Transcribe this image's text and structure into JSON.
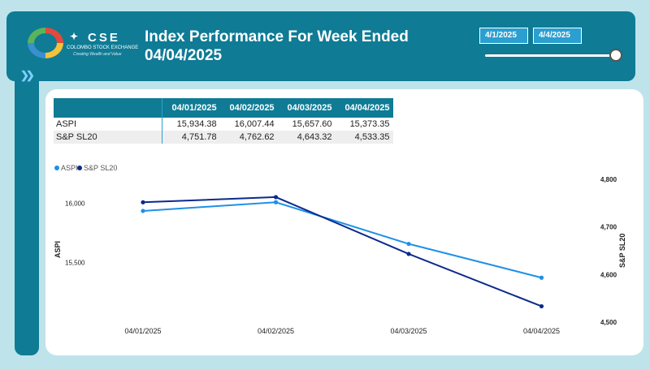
{
  "header": {
    "title_line1": "Index Performance For Week Ended",
    "title_line2": "04/04/2025",
    "logo": {
      "cse_text": "CSE",
      "name": "COLOMBO STOCK EXCHANGE",
      "tagline": "Creating Wealth and Value"
    },
    "date_from": "4/1/2025",
    "date_to": "4/4/2025",
    "range_slider_position": 1.0
  },
  "table": {
    "columns": [
      "",
      "04/01/2025",
      "04/02/2025",
      "04/03/2025",
      "04/04/2025"
    ],
    "rows": [
      {
        "label": "ASPI",
        "values": [
          "15,934.38",
          "16,007.44",
          "15,657.60",
          "15,373.35"
        ]
      },
      {
        "label": "S&P SL20",
        "values": [
          "4,751.78",
          "4,762.62",
          "4,643.32",
          "4,533.35"
        ]
      }
    ]
  },
  "colors": {
    "header_bg": "#0f7b95",
    "aspi": "#1e90e8",
    "sp_sl20": "#0b2a8c"
  },
  "chart_data": {
    "type": "line",
    "categories": [
      "04/01/2025",
      "04/02/2025",
      "04/03/2025",
      "04/04/2025"
    ],
    "series": [
      {
        "name": "ASPI",
        "axis": "left",
        "values": [
          15934.38,
          16007.44,
          15657.6,
          15373.35
        ]
      },
      {
        "name": "S&P SL20",
        "axis": "right",
        "values": [
          4751.78,
          4762.62,
          4643.32,
          4533.35
        ]
      }
    ],
    "left_axis": {
      "label": "ASPI",
      "ticks": [
        "15,500",
        "16,000"
      ],
      "tick_values": [
        15500,
        16000
      ],
      "ylim": [
        15000,
        16200
      ]
    },
    "right_axis": {
      "label": "S&P SL20",
      "ticks": [
        "4,500",
        "4,600",
        "4,700",
        "4,800"
      ],
      "tick_values": [
        4500,
        4600,
        4700,
        4800
      ],
      "ylim": [
        4500,
        4800
      ]
    },
    "legend_position": "top-left",
    "grid": false
  }
}
